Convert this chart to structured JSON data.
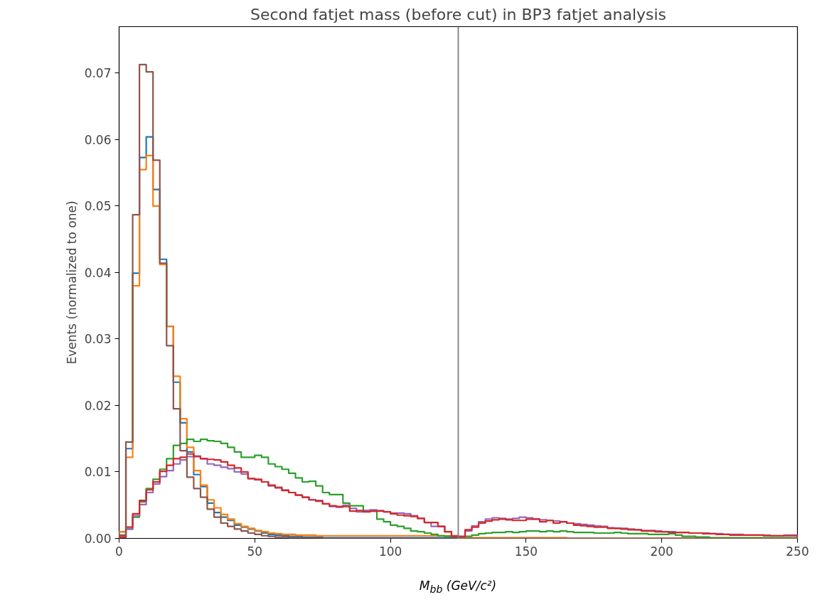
{
  "chart_data": {
    "type": "histogram",
    "title": "Second fatjet mass (before cut) in BP3 fatjet analysis",
    "xlabel": "M$_{bb}$ (GeV/c²)",
    "ylabel": "Events (normalized to one)",
    "bins": [
      0,
      2.5,
      5,
      7.5,
      10,
      12.5,
      15,
      17.5,
      20,
      22.5,
      25,
      27.5,
      30,
      32.5,
      35,
      37.5,
      40,
      42.5,
      45,
      47.5,
      50,
      52.5,
      55,
      57.5,
      60,
      62.5,
      65,
      67.5,
      70,
      72.5,
      75,
      77.5,
      80,
      82.5,
      85,
      87.5,
      90,
      92.5,
      95,
      97.5,
      100,
      102.5,
      105,
      107.5,
      110,
      112.5,
      115,
      117.5,
      120,
      122.5,
      125,
      127.5,
      130,
      132.5,
      135,
      137.5,
      140,
      142.5,
      145,
      147.5,
      150,
      152.5,
      155,
      157.5,
      160,
      162.5,
      165,
      167.5,
      170,
      172.5,
      175,
      177.5,
      180,
      182.5,
      185,
      187.5,
      190,
      192.5,
      195,
      197.5,
      200,
      202.5,
      205,
      207.5,
      210,
      212.5,
      215,
      217.5,
      220,
      222.5,
      225,
      227.5,
      230,
      232.5,
      235,
      237.5,
      240,
      242.5,
      245,
      247.5,
      250
    ],
    "series": [
      {
        "color": "#1f77b4",
        "values": [
          0.001,
          0.0135,
          0.0399,
          0.0573,
          0.0604,
          0.0525,
          0.042,
          0.0319,
          0.0235,
          0.0174,
          0.013,
          0.0096,
          0.0078,
          0.0053,
          0.0039,
          0.0032,
          0.0027,
          0.002,
          0.0017,
          0.0014,
          0.0011,
          0.0008,
          0.0006,
          0.0005,
          0.0004,
          0.0003,
          0.0003,
          0.0002,
          0.0002,
          0.0002,
          0.0001,
          0.0001,
          0.0001,
          0.0001,
          0.0001,
          0.0001,
          0.0001,
          0.0001,
          0.0001,
          0.0001,
          0.0001,
          0.0001,
          0.0001,
          0.0001,
          0.0001,
          0.0001,
          0.0001,
          0.0001,
          0.0001,
          0.0001,
          0,
          0,
          0,
          0,
          0,
          0,
          0,
          0,
          0,
          0,
          0,
          0,
          0,
          0,
          0,
          0,
          0,
          0,
          0,
          0,
          0,
          0,
          0,
          0,
          0,
          0,
          0,
          0,
          0,
          0,
          0,
          0,
          0,
          0,
          0,
          0,
          0,
          0,
          0,
          0,
          0,
          0,
          0,
          0,
          0,
          0,
          0,
          0,
          0,
          0
        ]
      },
      {
        "color": "#ff7f0e",
        "values": [
          0.001,
          0.0122,
          0.038,
          0.0555,
          0.0576,
          0.05,
          0.0412,
          0.0319,
          0.0244,
          0.018,
          0.0137,
          0.0102,
          0.008,
          0.0058,
          0.0046,
          0.0036,
          0.0029,
          0.0022,
          0.0018,
          0.0015,
          0.0012,
          0.001,
          0.0008,
          0.0007,
          0.0006,
          0.0006,
          0.0005,
          0.0005,
          0.0005,
          0.0004,
          0.0004,
          0.0004,
          0.0004,
          0.0004,
          0.0004,
          0.0004,
          0.0004,
          0.0004,
          0.0004,
          0.0004,
          0.0004,
          0.0004,
          0.0004,
          0.0004,
          0.0004,
          0.0004,
          0.0004,
          0.0004,
          0.0004,
          0.0004,
          0.0001,
          0.0001,
          0.0001,
          0.0001,
          0.0001,
          0.0001,
          0.0001,
          0.0001,
          0.0001,
          0.0001,
          0.0001,
          0.0001,
          0.0001,
          0.0001,
          0.0001,
          0.0001,
          0,
          0,
          0,
          0,
          0,
          0,
          0,
          0,
          0,
          0,
          0,
          0,
          0,
          0,
          0,
          0,
          0,
          0,
          0,
          0,
          0,
          0,
          0,
          0,
          0,
          0,
          0,
          0,
          0,
          0,
          0,
          0,
          0,
          0
        ]
      },
      {
        "color": "#2ca02c",
        "values": [
          0.0002,
          0.0014,
          0.0032,
          0.0055,
          0.0075,
          0.0089,
          0.0104,
          0.012,
          0.014,
          0.0143,
          0.0149,
          0.0146,
          0.0149,
          0.0147,
          0.0146,
          0.0143,
          0.0137,
          0.013,
          0.0122,
          0.0122,
          0.0125,
          0.0122,
          0.0112,
          0.0108,
          0.0104,
          0.0098,
          0.0091,
          0.0085,
          0.0086,
          0.0079,
          0.0069,
          0.0066,
          0.0066,
          0.0053,
          0.0049,
          0.0049,
          0.0042,
          0.0041,
          0.0029,
          0.0025,
          0.002,
          0.0018,
          0.0015,
          0.0011,
          0.001,
          0.0008,
          0.0006,
          0.0004,
          0.0003,
          0.0002,
          0.0001,
          0.0003,
          0.0005,
          0.0007,
          0.0008,
          0.0009,
          0.0009,
          0.001,
          0.0009,
          0.001,
          0.0011,
          0.0011,
          0.001,
          0.0011,
          0.001,
          0.0011,
          0.001,
          0.0009,
          0.0009,
          0.0009,
          0.0008,
          0.0008,
          0.0008,
          0.0009,
          0.0008,
          0.0007,
          0.0007,
          0.0007,
          0.0006,
          0.0006,
          0.0006,
          0.0007,
          0.0005,
          0.0003,
          0.0003,
          0.0002,
          0.0002,
          0.0001,
          0.0001,
          0.0001,
          0.0001,
          0.0001,
          0.0001,
          0.0001,
          0.0001,
          0.0001,
          0.0001,
          0.0001,
          0.0001,
          0.0001
        ]
      },
      {
        "color": "#9467bd",
        "values": [
          0.0002,
          0.0014,
          0.0034,
          0.0051,
          0.0069,
          0.0082,
          0.0093,
          0.0102,
          0.0112,
          0.0118,
          0.0123,
          0.0124,
          0.012,
          0.0112,
          0.011,
          0.0107,
          0.0105,
          0.01,
          0.0097,
          0.009,
          0.0088,
          0.0085,
          0.0079,
          0.0077,
          0.0073,
          0.0069,
          0.0065,
          0.0062,
          0.0058,
          0.0057,
          0.0052,
          0.0048,
          0.0047,
          0.005,
          0.0045,
          0.004,
          0.0042,
          0.0043,
          0.0042,
          0.004,
          0.0038,
          0.0038,
          0.0037,
          0.0034,
          0.003,
          0.0024,
          0.0018,
          0.0018,
          0.001,
          0.0004,
          0.0002,
          0.0011,
          0.0019,
          0.0025,
          0.0029,
          0.0031,
          0.003,
          0.0029,
          0.003,
          0.0032,
          0.0031,
          0.0029,
          0.0028,
          0.0027,
          0.0026,
          0.0025,
          0.0023,
          0.0022,
          0.0021,
          0.002,
          0.0019,
          0.0018,
          0.0016,
          0.0015,
          0.0015,
          0.0014,
          0.0013,
          0.0012,
          0.0012,
          0.0011,
          0.001,
          0.001,
          0.0009,
          0.0009,
          0.0008,
          0.0008,
          0.0008,
          0.0007,
          0.0007,
          0.0006,
          0.0006,
          0.0006,
          0.0005,
          0.0005,
          0.0005,
          0.0005,
          0.0004,
          0.0004,
          0.0005,
          0.0005
        ]
      },
      {
        "color": "#d62728",
        "values": [
          0.0002,
          0.0017,
          0.0037,
          0.0057,
          0.0073,
          0.0085,
          0.0101,
          0.011,
          0.012,
          0.0122,
          0.0127,
          0.0123,
          0.012,
          0.0119,
          0.0118,
          0.0115,
          0.011,
          0.0106,
          0.01,
          0.009,
          0.0089,
          0.0085,
          0.008,
          0.0076,
          0.0072,
          0.0069,
          0.0065,
          0.0062,
          0.0058,
          0.0056,
          0.0052,
          0.0049,
          0.0048,
          0.0048,
          0.0041,
          0.0042,
          0.004,
          0.0041,
          0.0041,
          0.004,
          0.0037,
          0.0035,
          0.0034,
          0.0033,
          0.003,
          0.0024,
          0.0024,
          0.0018,
          0.001,
          0.0003,
          0.0003,
          0.0013,
          0.0017,
          0.0023,
          0.0026,
          0.0028,
          0.0029,
          0.0028,
          0.0027,
          0.0027,
          0.0029,
          0.0029,
          0.0025,
          0.0027,
          0.0023,
          0.0025,
          0.0023,
          0.002,
          0.0019,
          0.0018,
          0.0017,
          0.0017,
          0.0015,
          0.0015,
          0.0014,
          0.0013,
          0.0013,
          0.0011,
          0.0011,
          0.001,
          0.001,
          0.0009,
          0.0009,
          0.0009,
          0.0008,
          0.0008,
          0.0007,
          0.0007,
          0.0006,
          0.0006,
          0.0005,
          0.0005,
          0.0005,
          0.0005,
          0.0005,
          0.0004,
          0.0004,
          0.0004,
          0.0004,
          0.0004
        ]
      },
      {
        "color": "#8c564b",
        "values": [
          0.0005,
          0.0145,
          0.0487,
          0.0713,
          0.0702,
          0.0569,
          0.0414,
          0.029,
          0.0195,
          0.0132,
          0.0092,
          0.0075,
          0.0062,
          0.0044,
          0.0032,
          0.0023,
          0.0018,
          0.0014,
          0.0011,
          0.0008,
          0.0006,
          0.0004,
          0.0003,
          0.0002,
          0.0002,
          0.0001,
          0.0001,
          0.0001,
          0.0001,
          0.0001,
          0,
          0,
          0,
          0,
          0,
          0,
          0,
          0,
          0,
          0,
          0,
          0,
          0,
          0,
          0,
          0,
          0,
          0,
          0,
          0,
          0,
          0,
          0,
          0,
          0,
          0,
          0,
          0,
          0,
          0,
          0,
          0,
          0,
          0,
          0,
          0,
          0,
          0,
          0,
          0,
          0,
          0,
          0,
          0,
          0,
          0,
          0,
          0,
          0,
          0,
          0,
          0,
          0,
          0,
          0,
          0,
          0,
          0,
          0,
          0,
          0,
          0,
          0,
          0,
          0,
          0,
          0,
          0,
          0,
          0
        ]
      }
    ],
    "xlim": [
      0,
      250
    ],
    "xticks": [
      0,
      50,
      100,
      150,
      200,
      250
    ],
    "ylim": [
      0,
      0.077
    ],
    "yticks": [
      {
        "value": 0,
        "label": "0.00"
      },
      {
        "value": 0.01,
        "label": "0.01"
      },
      {
        "value": 0.02,
        "label": "0.02"
      },
      {
        "value": 0.03,
        "label": "0.03"
      },
      {
        "value": 0.04,
        "label": "0.04"
      },
      {
        "value": 0.05,
        "label": "0.05"
      },
      {
        "value": 0.06,
        "label": "0.06"
      },
      {
        "value": 0.07,
        "label": "0.07"
      }
    ],
    "ref_lines": [
      {
        "axis": "x",
        "value": 125,
        "color": "#808080"
      }
    ]
  }
}
